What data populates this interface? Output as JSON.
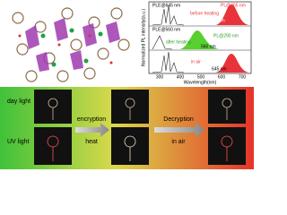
{
  "spectrum": {
    "y_label": "Normalized PL intensity(a.u.)",
    "x_label": "Wavelength(nm)",
    "x_ticks": [
      "300",
      "400",
      "500",
      "600",
      "700"
    ],
    "panels": [
      {
        "ple": "PLE@645 nm",
        "pl": "PL@365 nm",
        "condition": "before heating",
        "peak": "645 nm"
      },
      {
        "ple": "PLE@560 nm",
        "pl": "PL@290 nm",
        "condition": "after heating",
        "peak": "560 nm"
      },
      {
        "condition": "in air",
        "peak": "645 nm"
      }
    ]
  },
  "scheme": {
    "rows": [
      "day light",
      "UV light"
    ],
    "step1": {
      "top": "encryption",
      "bottom": "heat"
    },
    "step2": {
      "top": "Decryption",
      "bottom": "in air"
    }
  }
}
